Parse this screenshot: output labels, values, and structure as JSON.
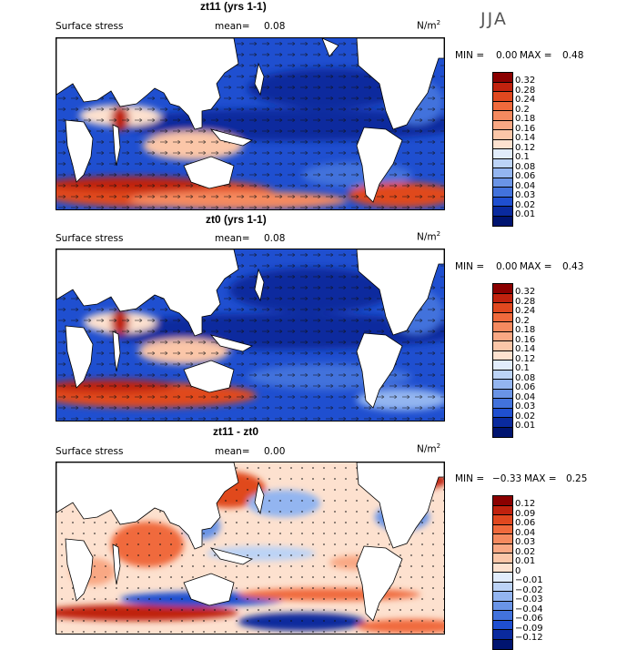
{
  "season": "JJA",
  "units": "N/m",
  "units_exp": "2",
  "panels": [
    {
      "title": "zt11 (yrs 1-1)",
      "variable": "Surface stress",
      "mean_label": "mean=",
      "mean": "0.08",
      "min_label": "MIN =",
      "min": "0.00",
      "max_label": "MAX =",
      "max": "0.48",
      "colorbar_levels": [
        "0.32",
        "0.28",
        "0.24",
        "0.2",
        "0.18",
        "0.16",
        "0.14",
        "0.12",
        "0.1",
        "0.08",
        "0.06",
        "0.04",
        "0.03",
        "0.02",
        "0.01"
      ],
      "colorbar_colors": [
        "#8b0000",
        "#c0220e",
        "#e0481f",
        "#f06a3c",
        "#f58a5f",
        "#f9a884",
        "#fbc6a8",
        "#fde1cf",
        "#e1ecfb",
        "#bcd3f6",
        "#93b5f0",
        "#6a94e6",
        "#4272dc",
        "#1f4fd0",
        "#0a2a9e",
        "#001470"
      ]
    },
    {
      "title": "zt0 (yrs 1-1)",
      "variable": "Surface stress",
      "mean_label": "mean=",
      "mean": "0.08",
      "min_label": "MIN =",
      "min": "0.00",
      "max_label": "MAX =",
      "max": "0.43",
      "colorbar_levels": [
        "0.32",
        "0.28",
        "0.24",
        "0.2",
        "0.18",
        "0.16",
        "0.14",
        "0.12",
        "0.1",
        "0.08",
        "0.06",
        "0.04",
        "0.03",
        "0.02",
        "0.01"
      ],
      "colorbar_colors": [
        "#8b0000",
        "#c0220e",
        "#e0481f",
        "#f06a3c",
        "#f58a5f",
        "#f9a884",
        "#fbc6a8",
        "#fde1cf",
        "#e1ecfb",
        "#bcd3f6",
        "#93b5f0",
        "#6a94e6",
        "#4272dc",
        "#1f4fd0",
        "#0a2a9e",
        "#001470"
      ]
    },
    {
      "title": "zt11 - zt0",
      "variable": "Surface stress",
      "mean_label": "mean=",
      "mean": "0.00",
      "min_label": "MIN =",
      "min": "−0.33",
      "max_label": "MAX =",
      "max": "0.25",
      "colorbar_levels": [
        "0.12",
        "0.09",
        "0.06",
        "0.04",
        "0.03",
        "0.02",
        "0.01",
        "0",
        "−0.01",
        "−0.02",
        "−0.03",
        "−0.04",
        "−0.06",
        "−0.09",
        "−0.12"
      ],
      "colorbar_colors": [
        "#8b0000",
        "#c0220e",
        "#e0481f",
        "#f06a3c",
        "#f58a5f",
        "#f9a884",
        "#fbc6a8",
        "#fde1cf",
        "#e1ecfb",
        "#bcd3f6",
        "#93b5f0",
        "#6a94e6",
        "#4272dc",
        "#1f4fd0",
        "#0a2a9e",
        "#001470"
      ]
    }
  ]
}
